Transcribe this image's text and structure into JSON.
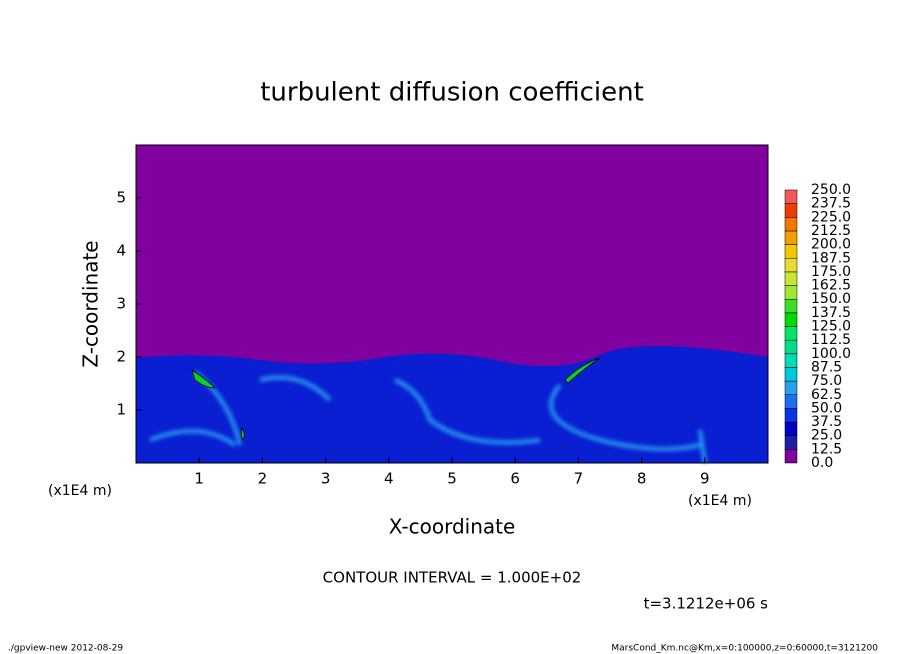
{
  "chart_data": {
    "type": "contour",
    "title": "turbulent diffusion coefficient",
    "xlabel": "X-coordinate",
    "ylabel": "Z-coordinate",
    "x_unit": "(x1E4 m)",
    "y_unit": "(x1E4 m)",
    "xlim": [
      0,
      10
    ],
    "xticks": [
      1,
      2,
      3,
      4,
      5,
      6,
      7,
      8,
      9
    ],
    "ylim": [
      0,
      6
    ],
    "yticks": [
      1,
      2,
      3,
      4,
      5
    ],
    "contour_note": "CONTOUR INTERVAL = 1.000E+02",
    "time_label": "t=3.1212e+06 s",
    "footer_left": "./gpview-new  2012-08-29",
    "footer_right": "MarsCond_Km.nc@Km,x=0:100000,z=0:60000,t=3121200",
    "colorbar": {
      "levels": [
        {
          "value": 0,
          "label": "0.0"
        },
        {
          "value": 12.5,
          "label": "12.5"
        },
        {
          "value": 25,
          "label": "25.0"
        },
        {
          "value": 37.5,
          "label": "37.5"
        },
        {
          "value": 50,
          "label": "50.0"
        },
        {
          "value": 62.5,
          "label": "62.5"
        },
        {
          "value": 75,
          "label": "75.0"
        },
        {
          "value": 87.5,
          "label": "87.5"
        },
        {
          "value": 100,
          "label": "100.0"
        },
        {
          "value": 112.5,
          "label": "112.5"
        },
        {
          "value": 125,
          "label": "125.0"
        },
        {
          "value": 137.5,
          "label": "137.5"
        },
        {
          "value": 150,
          "label": "150.0"
        },
        {
          "value": 162.5,
          "label": "162.5"
        },
        {
          "value": 175,
          "label": "175.0"
        },
        {
          "value": 187.5,
          "label": "187.5"
        },
        {
          "value": 200,
          "label": "200.0"
        },
        {
          "value": 212.5,
          "label": "212.5"
        },
        {
          "value": 225,
          "label": "225.0"
        },
        {
          "value": 237.5,
          "label": "237.5"
        },
        {
          "value": 250,
          "label": "250.0"
        }
      ],
      "colors": [
        "#8000a0",
        "#1e1ea0",
        "#0000c8",
        "#0a32e6",
        "#1e6ef0",
        "#28a0f0",
        "#00c8dc",
        "#00dcb4",
        "#00dc8c",
        "#00e664",
        "#00dc00",
        "#3cdc28",
        "#a0e632",
        "#c8e632",
        "#e6dc32",
        "#f0c800",
        "#f0a000",
        "#f07800",
        "#f03c00",
        "#f05a5a"
      ]
    }
  }
}
